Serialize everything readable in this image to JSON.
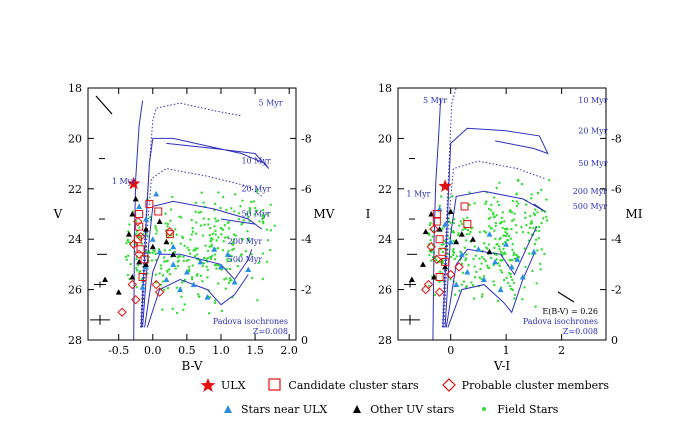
{
  "chart_data": [
    {
      "type": "scatter",
      "panel": "left",
      "xlabel": "B-V",
      "ylabel": "V",
      "y2label": "M_V",
      "xlim": [
        -0.95,
        2.1
      ],
      "ylim": [
        28,
        18
      ],
      "y2lim": [
        0,
        -10
      ],
      "xticks": [
        "-0.5",
        "0.0",
        "0.5",
        "1.0",
        "1.5",
        "2.0"
      ],
      "xtick_values": [
        -0.5,
        0.0,
        0.5,
        1.0,
        1.5,
        2.0
      ],
      "yticks": [
        "18",
        "20",
        "22",
        "24",
        "26",
        "28"
      ],
      "ytick_values": [
        18,
        20,
        22,
        24,
        26,
        28
      ],
      "y2ticks": [
        "0",
        "-2",
        "-4",
        "-6",
        "-8"
      ],
      "y2tick_values": [
        0,
        -2,
        -4,
        -6,
        -8
      ],
      "isochrone_labels": [
        {
          "text": "5 Myr",
          "x": 1.55,
          "y": 18.7
        },
        {
          "text": "10 Myr",
          "x": 1.3,
          "y": 21.0
        },
        {
          "text": "20 Myr",
          "x": 1.3,
          "y": 22.1
        },
        {
          "text": "1 Myr",
          "x": -0.6,
          "y": 21.8
        },
        {
          "text": "50 Myr",
          "x": 1.3,
          "y": 23.1
        },
        {
          "text": "200 Myr",
          "x": 1.1,
          "y": 24.2
        },
        {
          "text": "500 Myr",
          "x": 1.1,
          "y": 24.9
        }
      ],
      "note_lines": [
        "Padova isochrones",
        "Z=0.008"
      ],
      "isochrones": [
        {
          "name": "5 Myr",
          "style": "dotted",
          "points": [
            [
              -0.18,
              27.5
            ],
            [
              -0.12,
              24.0
            ],
            [
              -0.05,
              21.0
            ],
            [
              0.0,
              19.3
            ],
            [
              0.05,
              18.8
            ],
            [
              0.4,
              18.6
            ],
            [
              0.9,
              18.9
            ],
            [
              1.3,
              19.1
            ]
          ]
        },
        {
          "name": "10 Myr",
          "style": "solid",
          "points": [
            [
              -0.17,
              27.5
            ],
            [
              -0.1,
              23.5
            ],
            [
              -0.05,
              21.0
            ],
            [
              0.0,
              20.0
            ],
            [
              0.3,
              20.0
            ],
            [
              0.8,
              20.3
            ],
            [
              1.3,
              20.6
            ],
            [
              1.65,
              21.0
            ],
            [
              1.7,
              21.2
            ],
            [
              1.5,
              20.6
            ],
            [
              0.9,
              20.4
            ],
            [
              0.2,
              20.2
            ]
          ]
        },
        {
          "name": "20 Myr",
          "style": "dotted",
          "points": [
            [
              -0.16,
              27.5
            ],
            [
              -0.08,
              23.6
            ],
            [
              -0.02,
              21.6
            ],
            [
              0.2,
              21.2
            ],
            [
              0.8,
              21.5
            ],
            [
              1.4,
              21.9
            ],
            [
              1.6,
              22.3
            ]
          ]
        },
        {
          "name": "50 Myr",
          "style": "solid",
          "points": [
            [
              -0.15,
              27.5
            ],
            [
              -0.06,
              24.2
            ],
            [
              0.0,
              22.7
            ],
            [
              0.3,
              22.5
            ],
            [
              0.9,
              22.8
            ],
            [
              1.4,
              23.2
            ],
            [
              1.6,
              23.6
            ],
            [
              1.5,
              23.4
            ],
            [
              1.0,
              23.2
            ]
          ]
        },
        {
          "name": "200 Myr",
          "style": "solid",
          "points": [
            [
              -0.12,
              27.5
            ],
            [
              0.0,
              25.3
            ],
            [
              0.1,
              24.6
            ],
            [
              0.4,
              24.6
            ],
            [
              1.0,
              25.0
            ],
            [
              1.2,
              25.6
            ],
            [
              1.4,
              24.8
            ],
            [
              1.45,
              24.4
            ]
          ]
        },
        {
          "name": "500 Myr",
          "style": "solid",
          "points": [
            [
              -0.08,
              27.5
            ],
            [
              0.1,
              26.0
            ],
            [
              0.4,
              25.6
            ],
            [
              0.8,
              26.0
            ],
            [
              1.0,
              26.6
            ],
            [
              1.2,
              26.2
            ],
            [
              1.4,
              25.4
            ]
          ]
        },
        {
          "name": "1 Myr",
          "style": "solid",
          "points": [
            [
              -0.28,
              28.0
            ],
            [
              -0.27,
              24.0
            ],
            [
              -0.25,
              21.6
            ],
            [
              -0.2,
              19.5
            ],
            [
              -0.15,
              18.5
            ]
          ]
        }
      ],
      "ulx": {
        "x": -0.28,
        "y": 21.8
      },
      "candidate_cluster": [
        [
          -0.2,
          23.0
        ],
        [
          -0.2,
          23.5
        ],
        [
          -0.22,
          24.0
        ],
        [
          -0.18,
          24.4
        ],
        [
          -0.12,
          24.8
        ],
        [
          0.08,
          22.9
        ],
        [
          -0.05,
          22.6
        ],
        [
          0.25,
          23.8
        ],
        [
          -0.15,
          25.5
        ]
      ],
      "probable_members": [
        [
          -0.22,
          23.3
        ],
        [
          -0.28,
          24.2
        ],
        [
          -0.2,
          24.6
        ],
        [
          -0.3,
          25.8
        ],
        [
          -0.25,
          26.4
        ],
        [
          0.05,
          25.8
        ],
        [
          0.1,
          26.1
        ],
        [
          -0.45,
          26.9
        ],
        [
          -0.18,
          23.9
        ],
        [
          0.25,
          23.7
        ]
      ],
      "near_ulx": [
        [
          -0.2,
          22.7
        ],
        [
          -0.1,
          23.2
        ],
        [
          0.0,
          24.0
        ],
        [
          0.1,
          24.5
        ],
        [
          0.3,
          25.0
        ],
        [
          0.5,
          25.3
        ],
        [
          0.9,
          24.4
        ],
        [
          1.0,
          25.1
        ],
        [
          1.2,
          25.7
        ],
        [
          0.6,
          25.8
        ],
        [
          0.2,
          25.6
        ],
        [
          -0.1,
          25.1
        ],
        [
          0.7,
          24.9
        ],
        [
          1.1,
          24.6
        ],
        [
          0.4,
          26.0
        ],
        [
          0.8,
          26.3
        ],
        [
          1.4,
          25.2
        ],
        [
          -0.15,
          25.9
        ],
        [
          0.3,
          24.3
        ],
        [
          0.05,
          22.2
        ]
      ],
      "other_uv": [
        [
          -0.3,
          23.0
        ],
        [
          -0.35,
          23.8
        ],
        [
          -0.1,
          23.6
        ],
        [
          0.0,
          24.3
        ],
        [
          0.2,
          24.1
        ],
        [
          -0.3,
          25.5
        ],
        [
          -0.5,
          26.1
        ],
        [
          -0.7,
          25.6
        ],
        [
          -0.1,
          25.0
        ],
        [
          0.1,
          23.3
        ],
        [
          -0.25,
          22.4
        ],
        [
          -0.2,
          24.9
        ],
        [
          0.3,
          24.6
        ]
      ],
      "field": {
        "seed": 11,
        "count": 330
      }
    },
    {
      "type": "scatter",
      "panel": "right",
      "xlabel": "V-I",
      "ylabel": "I",
      "y2label": "M_I",
      "xlim": [
        -0.95,
        2.8
      ],
      "ylim": [
        28,
        18
      ],
      "y2lim": [
        0,
        -10
      ],
      "xticks": [
        "0",
        "1",
        "2"
      ],
      "xtick_values": [
        0,
        1,
        2
      ],
      "yticks": [
        "18",
        "20",
        "22",
        "24",
        "26",
        "28"
      ],
      "ytick_values": [
        18,
        20,
        22,
        24,
        26,
        28
      ],
      "y2ticks": [
        "0",
        "-2",
        "-4",
        "-6",
        "-8"
      ],
      "y2tick_values": [
        0,
        -2,
        -4,
        -6,
        -8
      ],
      "isochrone_labels": [
        {
          "text": "5 Myr",
          "x": -0.5,
          "y": 18.6
        },
        {
          "text": "10 Myr",
          "x": 2.3,
          "y": 18.6
        },
        {
          "text": "20 Myr",
          "x": 2.3,
          "y": 19.8
        },
        {
          "text": "50 Myr",
          "x": 2.3,
          "y": 21.1
        },
        {
          "text": "200 Myr",
          "x": 2.2,
          "y": 22.2
        },
        {
          "text": "1 Myr",
          "x": -0.8,
          "y": 22.3
        },
        {
          "text": "500 Myr",
          "x": 2.2,
          "y": 22.8
        }
      ],
      "note_lines": [
        "E(B-V) = 0.26",
        "Padova isochrones",
        "Z=0.008"
      ],
      "isochrones": [
        {
          "name": "5 Myr",
          "style": "dotted",
          "points": [
            [
              -0.15,
              27.5
            ],
            [
              -0.08,
              23.5
            ],
            [
              -0.02,
              20.5
            ],
            [
              0.02,
              18.6
            ],
            [
              0.1,
              18.0
            ]
          ]
        },
        {
          "name": "10 Myr",
          "style": "solid",
          "points": [
            [
              -0.14,
              27.5
            ],
            [
              -0.06,
              23.2
            ],
            [
              0.0,
              20.2
            ],
            [
              0.3,
              19.6
            ],
            [
              1.0,
              19.7
            ],
            [
              1.6,
              19.9
            ],
            [
              1.75,
              20.6
            ],
            [
              1.5,
              20.4
            ],
            [
              0.8,
              20.1
            ]
          ]
        },
        {
          "name": "20 Myr",
          "style": "dotted",
          "points": [
            [
              -0.12,
              27.5
            ],
            [
              -0.04,
              23.3
            ],
            [
              0.05,
              21.2
            ],
            [
              0.5,
              20.9
            ],
            [
              1.2,
              21.2
            ],
            [
              1.7,
              21.6
            ]
          ]
        },
        {
          "name": "50 Myr",
          "style": "solid",
          "points": [
            [
              -0.1,
              27.5
            ],
            [
              0.0,
              23.8
            ],
            [
              0.1,
              22.3
            ],
            [
              0.6,
              22.1
            ],
            [
              1.3,
              22.4
            ],
            [
              1.7,
              22.9
            ],
            [
              1.5,
              22.6
            ]
          ]
        },
        {
          "name": "200 Myr",
          "style": "solid",
          "points": [
            [
              -0.08,
              27.5
            ],
            [
              0.1,
              25.0
            ],
            [
              0.3,
              24.4
            ],
            [
              0.9,
              24.6
            ],
            [
              1.15,
              25.4
            ],
            [
              1.4,
              24.2
            ],
            [
              1.55,
              23.5
            ]
          ]
        },
        {
          "name": "500 Myr",
          "style": "solid",
          "points": [
            [
              -0.05,
              27.5
            ],
            [
              0.2,
              26.0
            ],
            [
              0.6,
              25.8
            ],
            [
              0.95,
              26.5
            ],
            [
              1.1,
              26.9
            ],
            [
              1.3,
              25.6
            ],
            [
              1.5,
              24.6
            ]
          ]
        },
        {
          "name": "1 Myr",
          "style": "solid",
          "points": [
            [
              -0.32,
              28.0
            ],
            [
              -0.3,
              24.0
            ],
            [
              -0.27,
              21.8
            ],
            [
              -0.22,
              20.0
            ],
            [
              -0.18,
              18.4
            ]
          ]
        }
      ],
      "ulx": {
        "x": -0.1,
        "y": 21.9
      },
      "candidate_cluster": [
        [
          -0.25,
          23.0
        ],
        [
          -0.25,
          23.3
        ],
        [
          -0.2,
          24.0
        ],
        [
          -0.15,
          24.5
        ],
        [
          -0.1,
          24.9
        ],
        [
          0.25,
          22.7
        ],
        [
          0.3,
          23.4
        ],
        [
          -0.2,
          25.5
        ]
      ],
      "probable_members": [
        [
          -0.3,
          23.6
        ],
        [
          -0.35,
          24.3
        ],
        [
          -0.25,
          24.8
        ],
        [
          -0.4,
          25.8
        ],
        [
          -0.2,
          26.1
        ],
        [
          0.0,
          25.4
        ],
        [
          0.15,
          25.1
        ],
        [
          -0.45,
          26.0
        ]
      ],
      "near_ulx": [
        [
          -0.2,
          22.8
        ],
        [
          -0.1,
          23.4
        ],
        [
          0.0,
          24.1
        ],
        [
          0.2,
          24.6
        ],
        [
          0.5,
          24.4
        ],
        [
          0.8,
          24.9
        ],
        [
          1.0,
          24.2
        ],
        [
          1.1,
          25.1
        ],
        [
          1.3,
          25.5
        ],
        [
          0.6,
          25.6
        ],
        [
          0.3,
          25.3
        ],
        [
          1.5,
          24.5
        ],
        [
          0.9,
          26.0
        ],
        [
          0.1,
          25.8
        ],
        [
          1.2,
          24.8
        ],
        [
          0.7,
          23.8
        ]
      ],
      "other_uv": [
        [
          -0.35,
          23.0
        ],
        [
          -0.45,
          23.7
        ],
        [
          -0.2,
          23.6
        ],
        [
          0.1,
          24.1
        ],
        [
          0.4,
          24.0
        ],
        [
          -0.3,
          25.5
        ],
        [
          -0.7,
          25.6
        ],
        [
          -0.5,
          25.0
        ],
        [
          0.0,
          22.9
        ],
        [
          0.2,
          23.8
        ],
        [
          -0.1,
          25.1
        ],
        [
          0.7,
          24.5
        ]
      ],
      "field": {
        "seed": 29,
        "count": 330
      }
    }
  ],
  "legend": {
    "row1": [
      {
        "symbol": "red-star",
        "label": "ULX"
      },
      {
        "symbol": "red-open-square",
        "label": "Candidate cluster stars"
      },
      {
        "symbol": "red-open-diamond",
        "label": "Probable cluster members"
      }
    ],
    "row2": [
      {
        "symbol": "blue-triangle",
        "label": "Stars near ULX"
      },
      {
        "symbol": "black-triangle",
        "label": "Other UV stars"
      },
      {
        "symbol": "green-dot",
        "label": "Field Stars"
      }
    ]
  },
  "colors": {
    "isochrone": "#2f2fbf",
    "ulx": "#e01010",
    "candidate": "#e01010",
    "probable": "#e01010",
    "near_ulx": "#2a8fe0",
    "other_uv": "#000000",
    "field": "#33dd33"
  }
}
